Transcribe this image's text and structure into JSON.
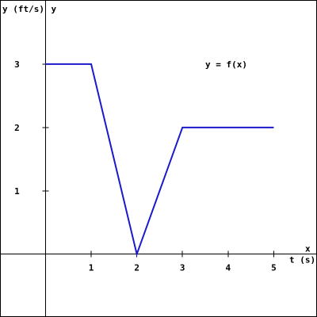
{
  "chart_data": {
    "type": "line",
    "title": "",
    "xlabel": "t (s)",
    "xlabel_math": "x",
    "ylabel": "y (ft/s)",
    "ylabel_math": "y",
    "annotation": "y = f(x)",
    "xlim": [
      -0.98,
      5.93
    ],
    "ylim": [
      -0.98,
      4.0
    ],
    "grid": false,
    "x_ticks": [
      1,
      2,
      3,
      4,
      5
    ],
    "x_tick_labels": [
      "1",
      "2",
      "3",
      "4",
      "5"
    ],
    "y_ticks": [
      1,
      2,
      3
    ],
    "y_tick_labels": [
      "1",
      "2",
      "3"
    ],
    "series": [
      {
        "color": "#1a1acc",
        "x": [
          0,
          1,
          2,
          3,
          5
        ],
        "y": [
          3,
          3,
          0,
          2,
          2
        ]
      }
    ]
  }
}
